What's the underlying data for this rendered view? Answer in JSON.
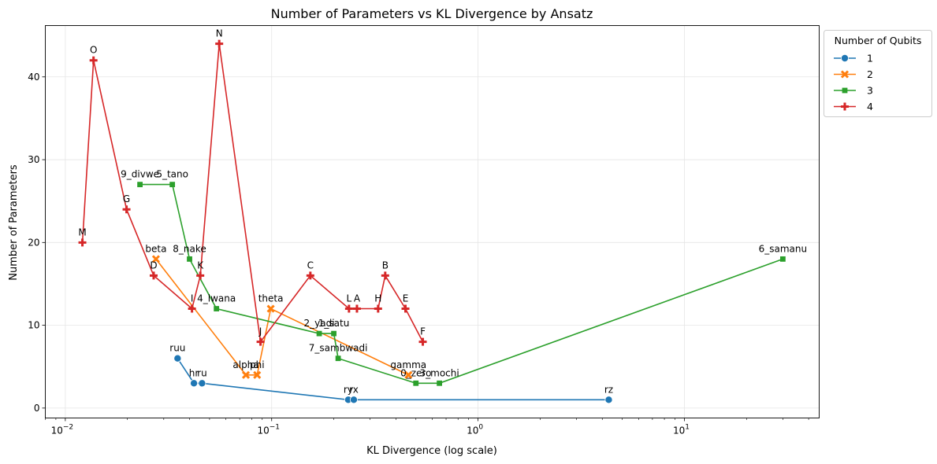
{
  "chart_data": {
    "type": "line",
    "title": "Number of Parameters vs KL Divergence by Ansatz",
    "xlabel": "KL Divergence (log scale)",
    "ylabel": "Number of Parameters",
    "xscale": "log",
    "xlim": [
      0.008,
      45
    ],
    "ylim": [
      -1.2,
      46.2
    ],
    "yticks": [
      0,
      10,
      20,
      30,
      40
    ],
    "xticks": [
      {
        "value": 0.01,
        "base": "10",
        "exp": "−2"
      },
      {
        "value": 0.1,
        "base": "10",
        "exp": "−1"
      },
      {
        "value": 1,
        "base": "10",
        "exp": "0"
      },
      {
        "value": 10,
        "base": "10",
        "exp": "1"
      }
    ],
    "grid": true,
    "legend": {
      "title": "Number of Qubits",
      "placement": "upper-right-outside"
    },
    "series": [
      {
        "name": "1",
        "color": "#1f77b4",
        "marker": "circle",
        "points": [
          {
            "label": "ruu",
            "x": 0.035,
            "y": 6
          },
          {
            "label": "hr",
            "x": 0.042,
            "y": 3
          },
          {
            "label": "ru",
            "x": 0.046,
            "y": 3
          },
          {
            "label": "ry",
            "x": 0.235,
            "y": 1
          },
          {
            "label": "rx",
            "x": 0.25,
            "y": 1
          },
          {
            "label": "rz",
            "x": 4.3,
            "y": 1
          }
        ]
      },
      {
        "name": "2",
        "color": "#ff7f0e",
        "marker": "x",
        "points": [
          {
            "label": "beta",
            "x": 0.0275,
            "y": 18
          },
          {
            "label": "alpha",
            "x": 0.075,
            "y": 4
          },
          {
            "label": "phi",
            "x": 0.085,
            "y": 4
          },
          {
            "label": "theta",
            "x": 0.099,
            "y": 12
          },
          {
            "label": "gamma",
            "x": 0.46,
            "y": 4
          }
        ]
      },
      {
        "name": "3",
        "color": "#2ca02c",
        "marker": "square",
        "points": [
          {
            "label": "9_divwe",
            "x": 0.023,
            "y": 27
          },
          {
            "label": "5_tano",
            "x": 0.033,
            "y": 27
          },
          {
            "label": "8_nake",
            "x": 0.04,
            "y": 18
          },
          {
            "label": "4_lwana",
            "x": 0.054,
            "y": 12
          },
          {
            "label": "2_yadi",
            "x": 0.17,
            "y": 9
          },
          {
            "label": "1_satu",
            "x": 0.2,
            "y": 9
          },
          {
            "label": "7_sambwadi",
            "x": 0.21,
            "y": 6
          },
          {
            "label": "0_zero",
            "x": 0.5,
            "y": 3
          },
          {
            "label": "3_mochi",
            "x": 0.65,
            "y": 3
          },
          {
            "label": "6_samanu",
            "x": 30,
            "y": 18
          }
        ]
      },
      {
        "name": "4",
        "color": "#d62728",
        "marker": "plus",
        "points": [
          {
            "label": "M",
            "x": 0.0121,
            "y": 20
          },
          {
            "label": "O",
            "x": 0.0137,
            "y": 42
          },
          {
            "label": "G",
            "x": 0.0198,
            "y": 24
          },
          {
            "label": "D",
            "x": 0.0268,
            "y": 16
          },
          {
            "label": "I",
            "x": 0.0411,
            "y": 12
          },
          {
            "label": "K",
            "x": 0.0451,
            "y": 16
          },
          {
            "label": "N",
            "x": 0.0557,
            "y": 44
          },
          {
            "label": "J",
            "x": 0.0883,
            "y": 8
          },
          {
            "label": "C",
            "x": 0.154,
            "y": 16
          },
          {
            "label": "L",
            "x": 0.237,
            "y": 12
          },
          {
            "label": "A",
            "x": 0.259,
            "y": 12
          },
          {
            "label": "H",
            "x": 0.328,
            "y": 12
          },
          {
            "label": "B",
            "x": 0.355,
            "y": 16
          },
          {
            "label": "E",
            "x": 0.445,
            "y": 12
          },
          {
            "label": "F",
            "x": 0.54,
            "y": 8
          }
        ]
      }
    ]
  }
}
